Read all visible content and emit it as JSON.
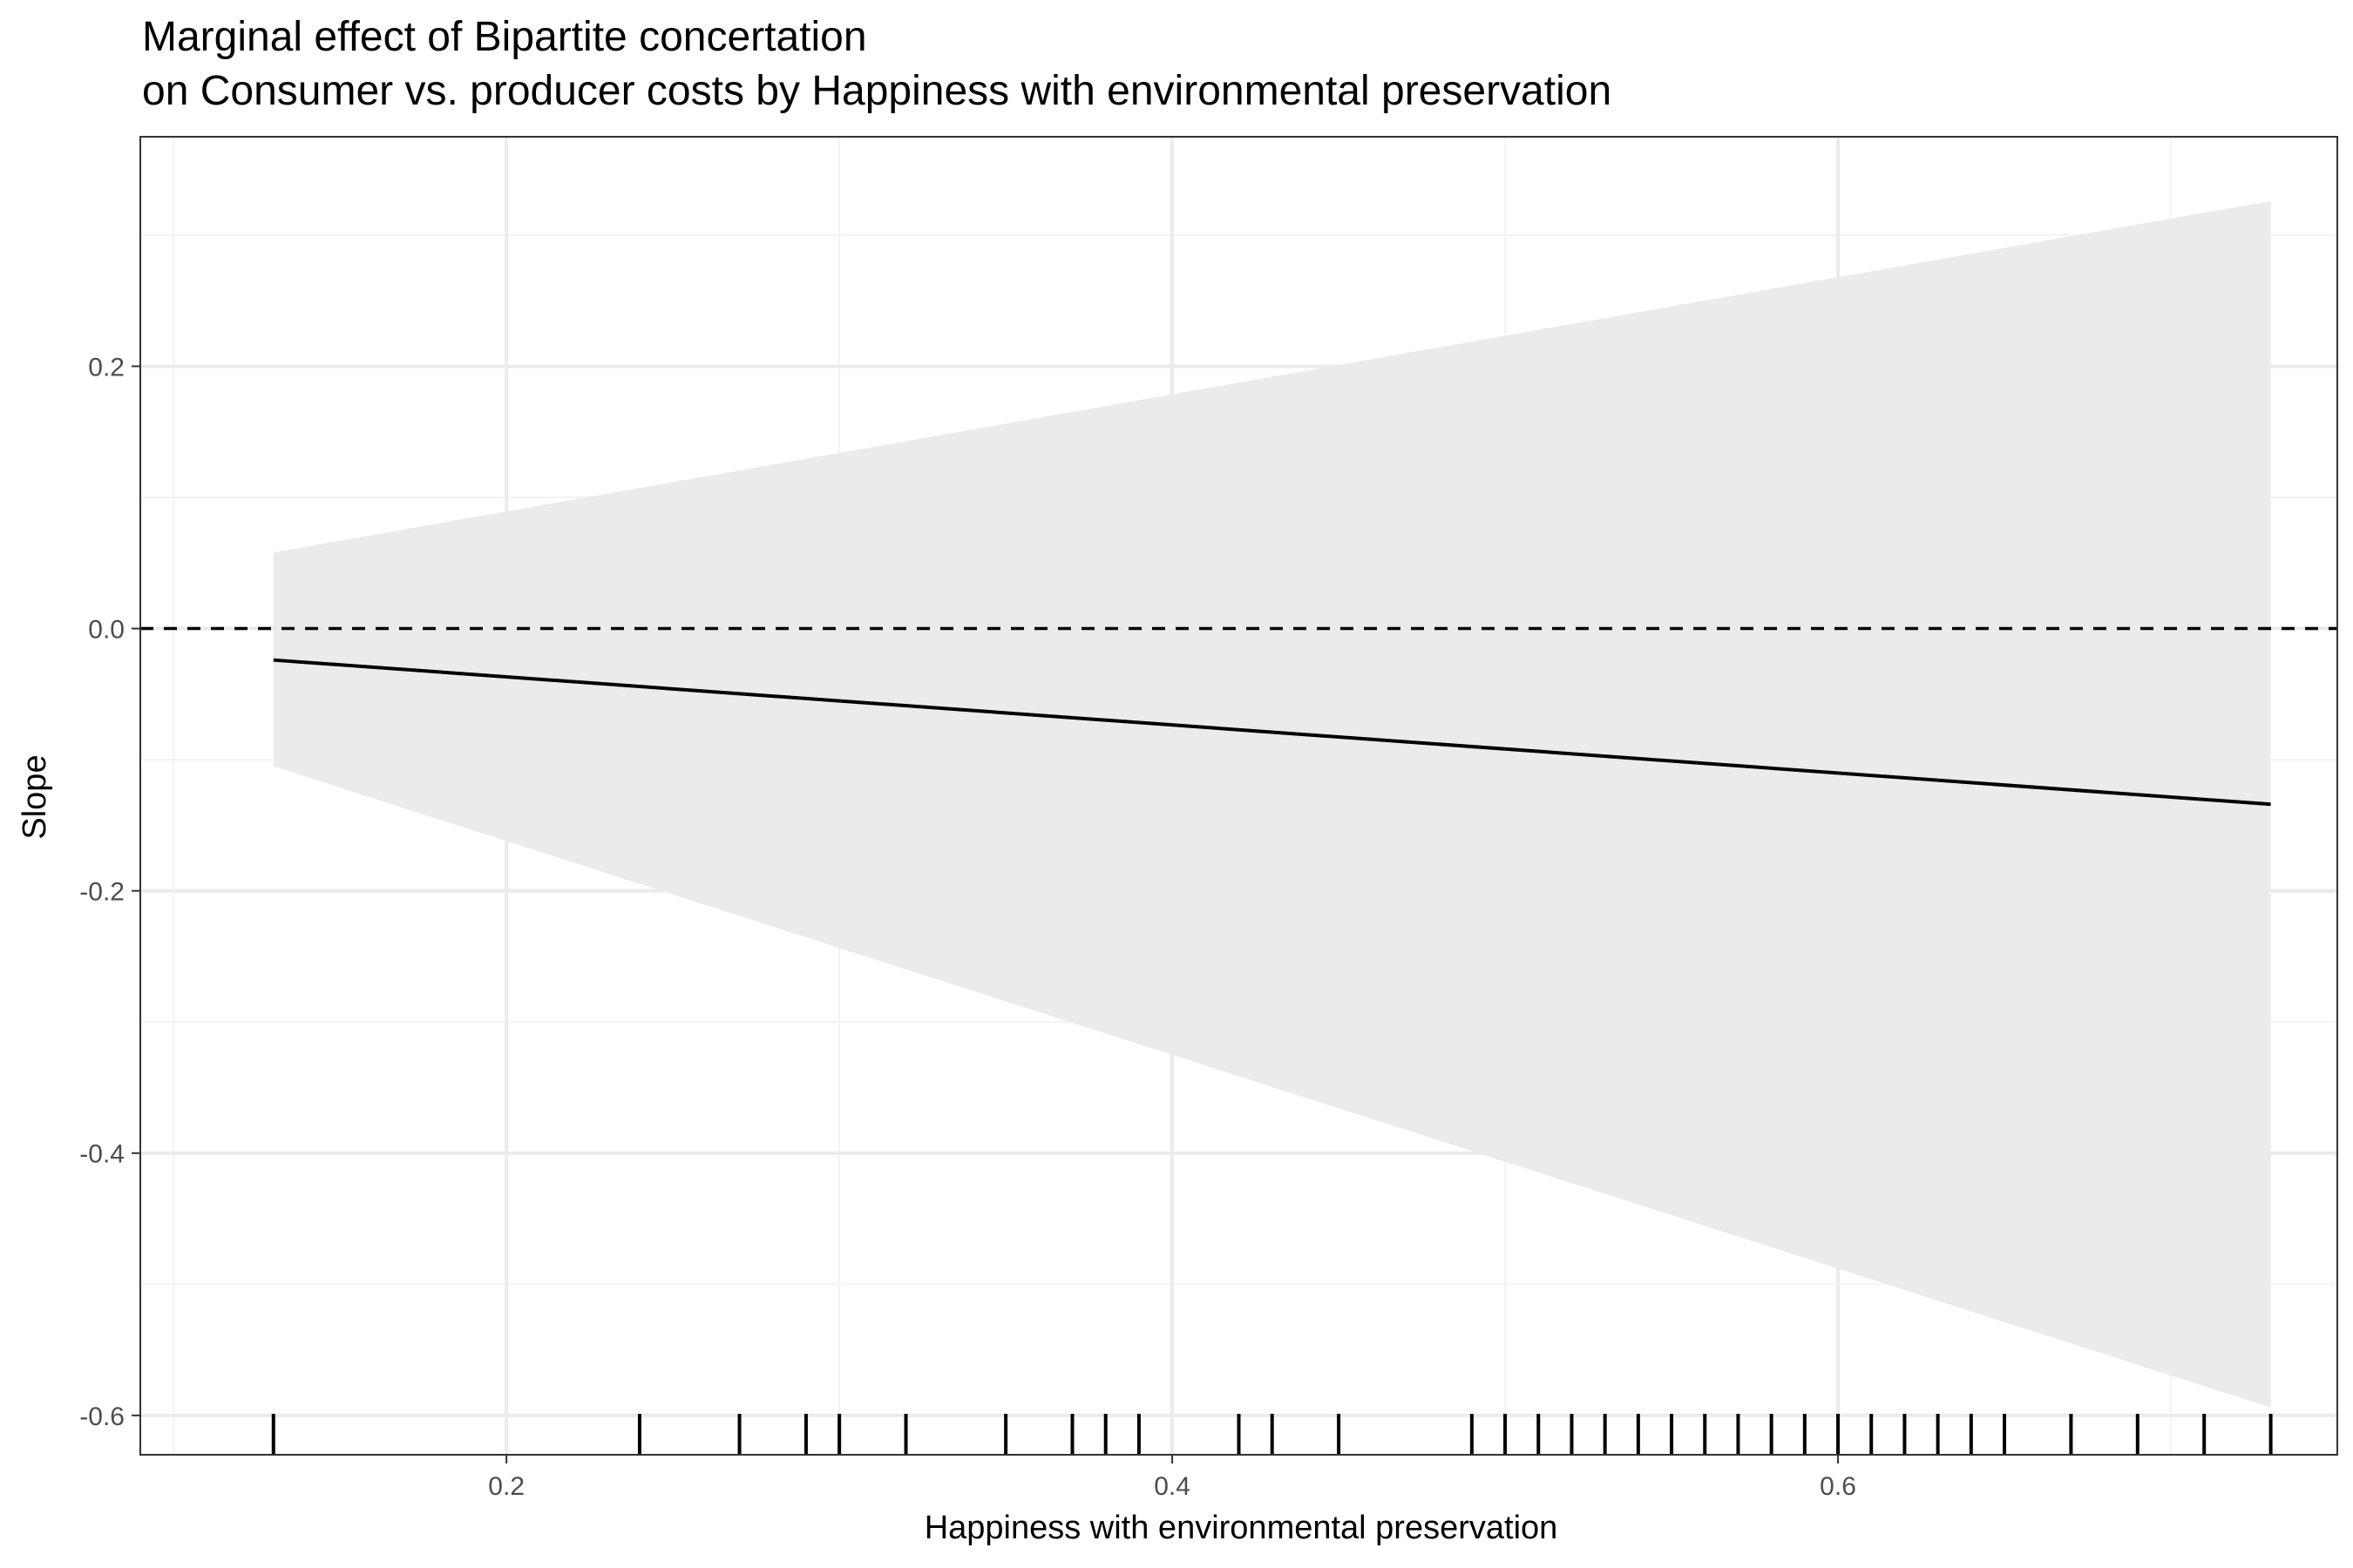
{
  "chart_data": {
    "type": "line",
    "title": "Marginal effect of Bipartite concertation",
    "subtitle": "on Consumer vs. producer costs by Happiness with environmental preservation",
    "xlabel": "Happiness with environmental preservation",
    "ylabel": "Slope",
    "xlim": [
      0.09,
      0.75
    ],
    "ylim": [
      -0.63,
      0.375
    ],
    "x_ticks": [
      0.2,
      0.4,
      0.6
    ],
    "x_tick_labels": [
      "0.2",
      "0.4",
      "0.6"
    ],
    "y_ticks": [
      -0.6,
      -0.4,
      -0.2,
      0.0,
      0.2
    ],
    "y_tick_labels": [
      "-0.6",
      "-0.4",
      "-0.2",
      "0.0",
      "0.2"
    ],
    "grid": true,
    "reference_line": {
      "y": 0.0,
      "style": "dashed"
    },
    "series": [
      {
        "x": [
          0.13,
          0.73
        ],
        "y": [
          -0.024,
          -0.134
        ],
        "lower": [
          -0.105,
          -0.594
        ],
        "upper": [
          0.058,
          0.326
        ]
      }
    ],
    "rug_x": [
      0.13,
      0.24,
      0.27,
      0.29,
      0.3,
      0.32,
      0.35,
      0.37,
      0.38,
      0.39,
      0.42,
      0.43,
      0.45,
      0.49,
      0.5,
      0.51,
      0.52,
      0.53,
      0.54,
      0.55,
      0.56,
      0.57,
      0.58,
      0.59,
      0.6,
      0.61,
      0.62,
      0.63,
      0.64,
      0.65,
      0.67,
      0.69,
      0.71,
      0.73
    ],
    "colors": {
      "ribbon": "#ebebeb",
      "line": "#000000",
      "grid_major": "#ebebeb",
      "grid_minor": "#f3f3f3",
      "panel_border": "#333333",
      "tick_text": "#4d4d4d"
    }
  }
}
